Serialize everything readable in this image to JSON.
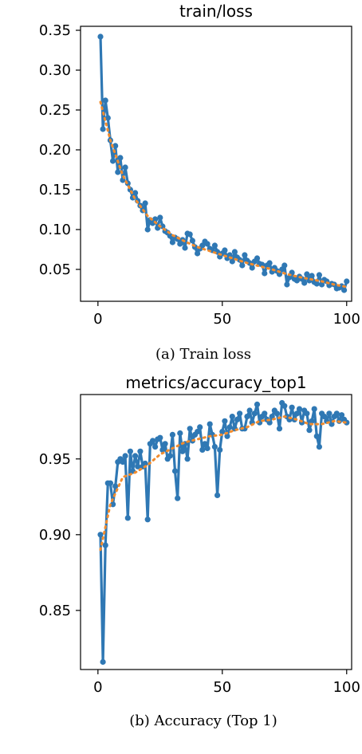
{
  "chart_data": [
    {
      "type": "line",
      "title": "train/loss",
      "caption": "(a) Train loss",
      "xlabel": "",
      "ylabel": "",
      "xlim": [
        -7,
        102
      ],
      "ylim": [
        0.01,
        0.355
      ],
      "xticks": [
        0,
        50,
        100
      ],
      "yticks": [
        0.05,
        0.1,
        0.15,
        0.2,
        0.25,
        0.3,
        0.35
      ],
      "ytick_labels": [
        "0.05",
        "0.10",
        "0.15",
        "0.20",
        "0.25",
        "0.30",
        "0.35"
      ],
      "grid": false,
      "series": [
        {
          "color": "#2f78b4",
          "style": "line-markers",
          "x": [
            1,
            2,
            3,
            4,
            5,
            6,
            7,
            8,
            9,
            10,
            11,
            12,
            13,
            14,
            15,
            16,
            17,
            18,
            19,
            20,
            21,
            22,
            23,
            24,
            25,
            26,
            27,
            28,
            29,
            30,
            31,
            32,
            33,
            34,
            35,
            36,
            37,
            38,
            39,
            40,
            41,
            42,
            43,
            44,
            45,
            46,
            47,
            48,
            49,
            50,
            51,
            52,
            53,
            54,
            55,
            56,
            57,
            58,
            59,
            60,
            61,
            62,
            63,
            64,
            65,
            66,
            67,
            68,
            69,
            70,
            71,
            72,
            73,
            74,
            75,
            76,
            77,
            78,
            79,
            80,
            81,
            82,
            83,
            84,
            85,
            86,
            87,
            88,
            89,
            90,
            91,
            92,
            93,
            94,
            95,
            96,
            97,
            98,
            99,
            100
          ],
          "y": [
            0.342,
            0.226,
            0.262,
            0.24,
            0.212,
            0.186,
            0.205,
            0.172,
            0.19,
            0.162,
            0.178,
            0.158,
            0.15,
            0.14,
            0.146,
            0.136,
            0.13,
            0.124,
            0.133,
            0.1,
            0.112,
            0.108,
            0.113,
            0.102,
            0.115,
            0.104,
            0.098,
            0.096,
            0.092,
            0.084,
            0.09,
            0.088,
            0.082,
            0.087,
            0.077,
            0.095,
            0.094,
            0.086,
            0.078,
            0.07,
            0.076,
            0.08,
            0.085,
            0.082,
            0.076,
            0.074,
            0.08,
            0.072,
            0.066,
            0.07,
            0.074,
            0.064,
            0.068,
            0.06,
            0.072,
            0.065,
            0.062,
            0.055,
            0.068,
            0.061,
            0.058,
            0.052,
            0.06,
            0.064,
            0.057,
            0.056,
            0.045,
            0.055,
            0.058,
            0.047,
            0.052,
            0.048,
            0.044,
            0.05,
            0.055,
            0.031,
            0.04,
            0.046,
            0.038,
            0.036,
            0.041,
            0.038,
            0.033,
            0.044,
            0.036,
            0.042,
            0.034,
            0.032,
            0.043,
            0.031,
            0.037,
            0.035,
            0.03,
            0.032,
            0.031,
            0.026,
            0.027,
            0.029,
            0.024,
            0.035
          ]
        },
        {
          "color": "#f28c2e",
          "style": "dotted",
          "x": [
            1,
            5,
            10,
            15,
            20,
            25,
            30,
            35,
            40,
            45,
            50,
            55,
            60,
            65,
            70,
            75,
            80,
            85,
            90,
            95,
            100
          ],
          "y": [
            0.26,
            0.212,
            0.168,
            0.138,
            0.117,
            0.104,
            0.093,
            0.085,
            0.078,
            0.073,
            0.068,
            0.063,
            0.058,
            0.054,
            0.05,
            0.045,
            0.041,
            0.038,
            0.035,
            0.031,
            0.028
          ]
        }
      ]
    },
    {
      "type": "line",
      "title": "metrics/accuracy_top1",
      "caption": "(b) Accuracy (Top 1)",
      "xlabel": "",
      "ylabel": "",
      "xlim": [
        -7,
        102
      ],
      "ylim": [
        0.811,
        0.9925
      ],
      "xticks": [
        0,
        50,
        100
      ],
      "yticks": [
        0.85,
        0.9,
        0.95
      ],
      "ytick_labels": [
        "0.85",
        "0.90",
        "0.95"
      ],
      "grid": false,
      "series": [
        {
          "color": "#2f78b4",
          "style": "line-markers",
          "x": [
            1,
            2,
            3,
            4,
            5,
            6,
            7,
            8,
            9,
            10,
            11,
            12,
            13,
            14,
            15,
            16,
            17,
            18,
            19,
            20,
            21,
            22,
            23,
            24,
            25,
            26,
            27,
            28,
            29,
            30,
            31,
            32,
            33,
            34,
            35,
            36,
            37,
            38,
            39,
            40,
            41,
            42,
            43,
            44,
            45,
            46,
            47,
            48,
            49,
            50,
            51,
            52,
            53,
            54,
            55,
            56,
            57,
            58,
            59,
            60,
            61,
            62,
            63,
            64,
            65,
            66,
            67,
            68,
            69,
            70,
            71,
            72,
            73,
            74,
            75,
            76,
            77,
            78,
            79,
            80,
            81,
            82,
            83,
            84,
            85,
            86,
            87,
            88,
            89,
            90,
            91,
            92,
            93,
            94,
            95,
            96,
            97,
            98,
            99,
            100
          ],
          "y": [
            0.9,
            0.816,
            0.893,
            0.934,
            0.934,
            0.92,
            0.932,
            0.948,
            0.95,
            0.948,
            0.952,
            0.911,
            0.955,
            0.942,
            0.952,
            0.945,
            0.955,
            0.945,
            0.947,
            0.91,
            0.96,
            0.962,
            0.958,
            0.963,
            0.964,
            0.956,
            0.96,
            0.95,
            0.952,
            0.966,
            0.942,
            0.924,
            0.967,
            0.955,
            0.96,
            0.95,
            0.97,
            0.962,
            0.966,
            0.968,
            0.971,
            0.956,
            0.96,
            0.957,
            0.973,
            0.966,
            0.958,
            0.926,
            0.956,
            0.968,
            0.975,
            0.965,
            0.971,
            0.978,
            0.97,
            0.976,
            0.98,
            0.97,
            0.97,
            0.978,
            0.982,
            0.974,
            0.98,
            0.986,
            0.974,
            0.978,
            0.98,
            0.976,
            0.974,
            0.978,
            0.982,
            0.98,
            0.97,
            0.987,
            0.985,
            0.978,
            0.976,
            0.984,
            0.976,
            0.98,
            0.983,
            0.974,
            0.982,
            0.98,
            0.969,
            0.975,
            0.983,
            0.965,
            0.958,
            0.98,
            0.978,
            0.975,
            0.98,
            0.973,
            0.978,
            0.98,
            0.975,
            0.979,
            0.976,
            0.974
          ]
        },
        {
          "color": "#f28c2e",
          "style": "dotted",
          "x": [
            1,
            5,
            10,
            15,
            20,
            25,
            30,
            35,
            40,
            45,
            50,
            55,
            60,
            65,
            70,
            75,
            80,
            85,
            90,
            95,
            100
          ],
          "y": [
            0.89,
            0.92,
            0.938,
            0.941,
            0.946,
            0.953,
            0.957,
            0.961,
            0.963,
            0.965,
            0.966,
            0.969,
            0.971,
            0.975,
            0.976,
            0.978,
            0.976,
            0.973,
            0.973,
            0.975,
            0.974
          ]
        }
      ]
    }
  ]
}
